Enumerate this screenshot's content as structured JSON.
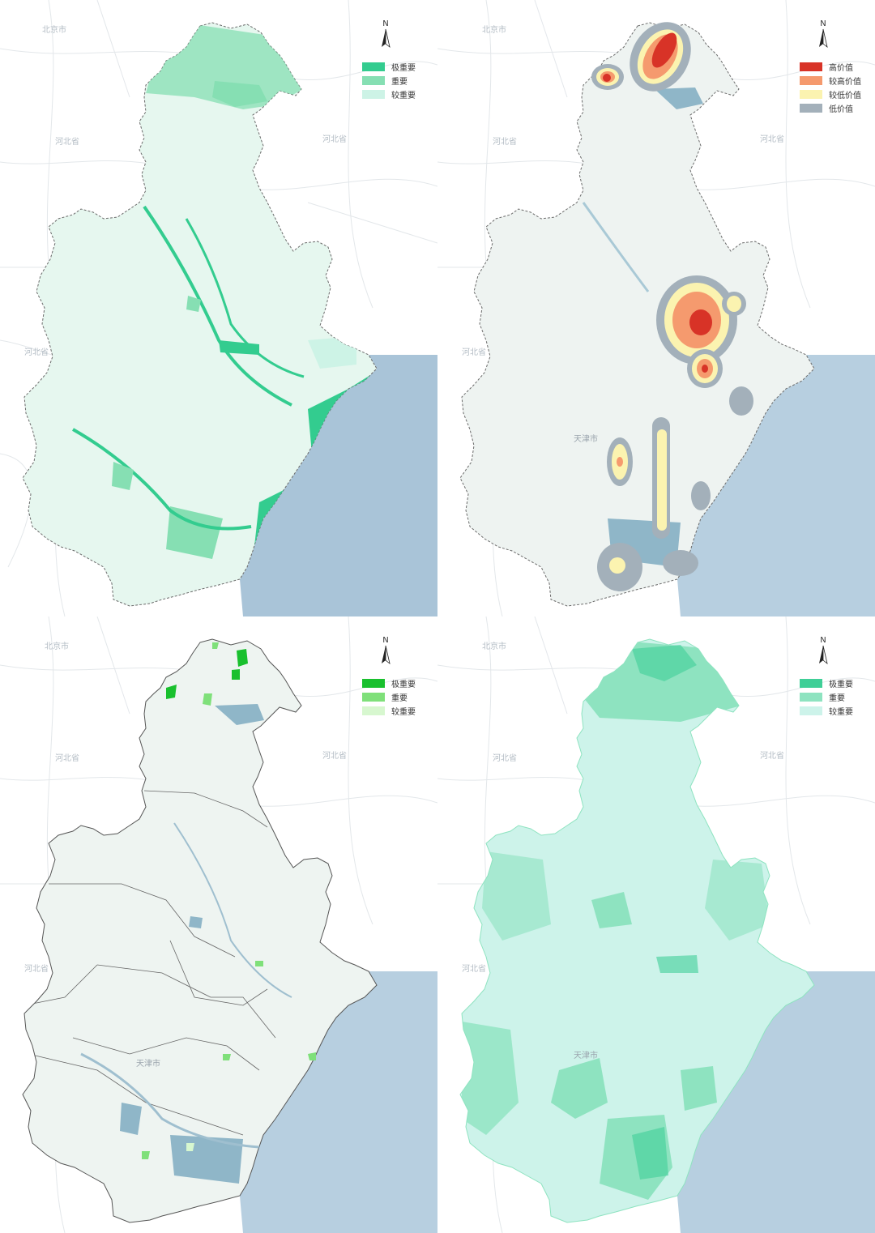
{
  "compass_label": "N",
  "place_labels": {
    "beijing": "北京市",
    "hebei": "河北省",
    "tianjin": "天津市"
  },
  "panels": [
    {
      "id": "top-left",
      "legend": [
        {
          "label": "极重要",
          "color": "#33cc8f"
        },
        {
          "label": "重要",
          "color": "#86dfb3"
        },
        {
          "label": "较重要",
          "color": "#cdf3e6"
        }
      ]
    },
    {
      "id": "top-right",
      "legend": [
        {
          "label": "高价值",
          "color": "#d83327"
        },
        {
          "label": "较高价值",
          "color": "#f59a6e"
        },
        {
          "label": "较低价值",
          "color": "#fbf3b0"
        },
        {
          "label": "低价值",
          "color": "#a3b0ba"
        }
      ]
    },
    {
      "id": "bottom-left",
      "legend": [
        {
          "label": "极重要",
          "color": "#19c02e"
        },
        {
          "label": "重要",
          "color": "#7fe07a"
        },
        {
          "label": "较重要",
          "color": "#d7f7cf"
        }
      ]
    },
    {
      "id": "bottom-right",
      "legend": [
        {
          "label": "极重要",
          "color": "#3fcf97"
        },
        {
          "label": "重要",
          "color": "#8ee3c0"
        },
        {
          "label": "较重要",
          "color": "#cdf3ea"
        }
      ]
    }
  ]
}
